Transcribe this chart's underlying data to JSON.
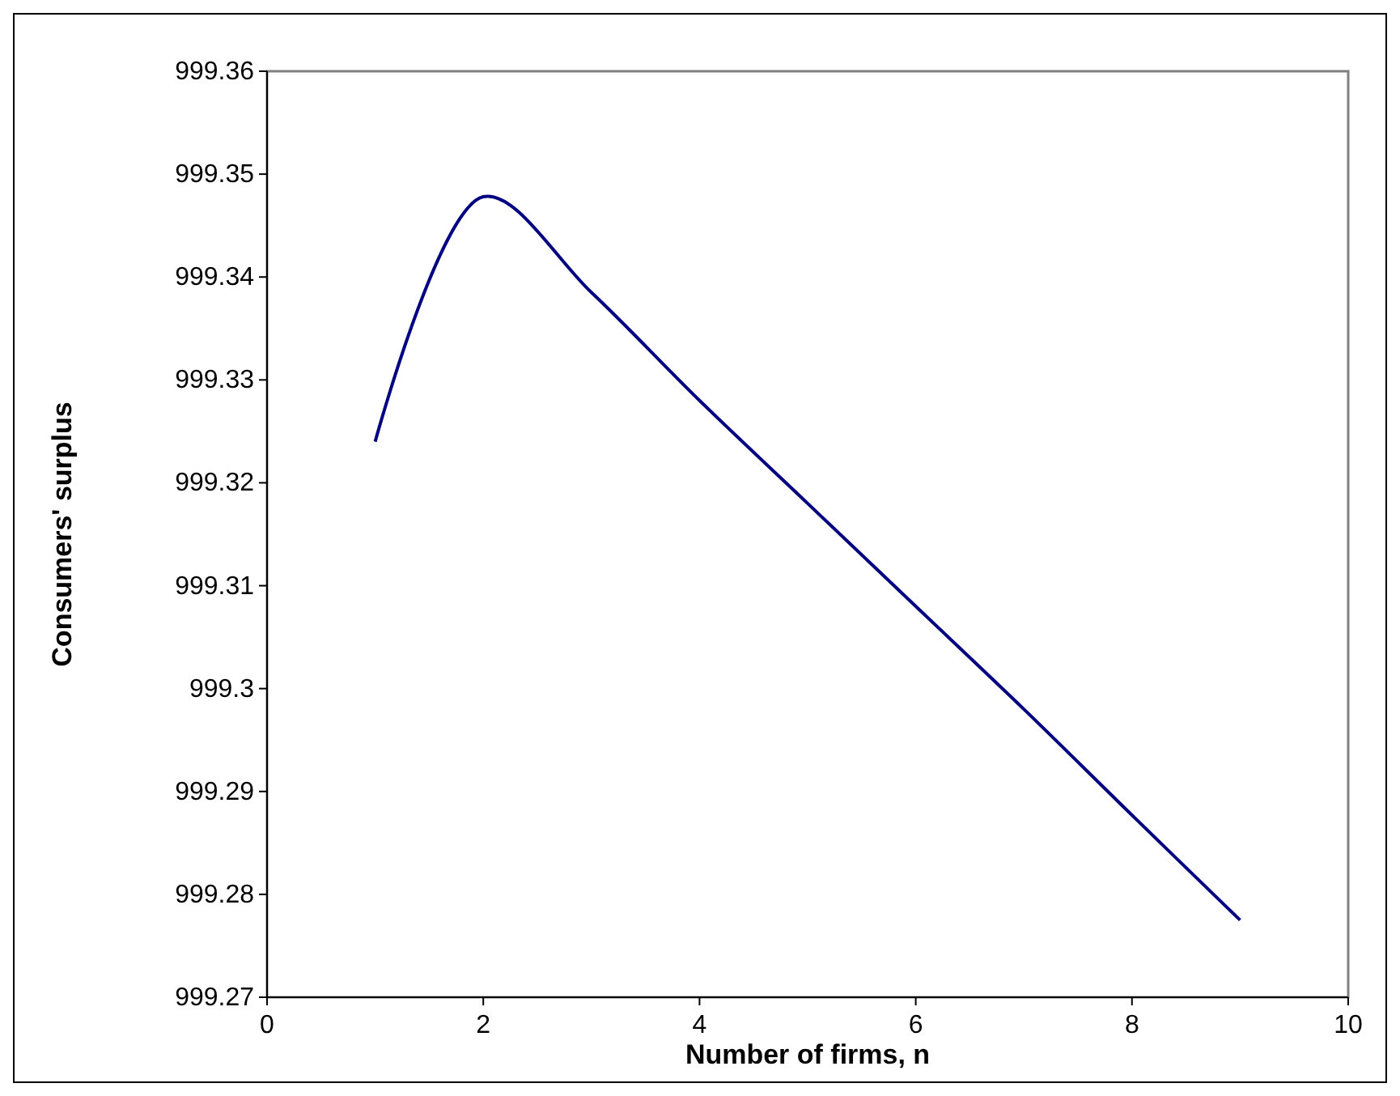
{
  "chart_data": {
    "type": "line",
    "xlabel": "Number of firms, n",
    "ylabel": "Consumers' surplus",
    "x": [
      1,
      2,
      3,
      4,
      5,
      6,
      7,
      8,
      9
    ],
    "series": [
      {
        "color": "#000080",
        "values": [
          999.324,
          999.3478,
          999.3385,
          999.328,
          999.318,
          999.308,
          999.298,
          999.2877,
          999.2775
        ]
      }
    ],
    "xlim": [
      0,
      10
    ],
    "xticks": [
      0,
      2,
      4,
      6,
      8,
      10
    ],
    "ylim": [
      999.27,
      999.36
    ],
    "yticks": [
      {
        "value": 999.27,
        "label": "999.27"
      },
      {
        "value": 999.28,
        "label": "999.28"
      },
      {
        "value": 999.29,
        "label": "999.29"
      },
      {
        "value": 999.3,
        "label": "999.3"
      },
      {
        "value": 999.31,
        "label": "999.31"
      },
      {
        "value": 999.32,
        "label": "999.32"
      },
      {
        "value": 999.33,
        "label": "999.33"
      },
      {
        "value": 999.34,
        "label": "999.34"
      },
      {
        "value": 999.35,
        "label": "999.35"
      },
      {
        "value": 999.36,
        "label": "999.36"
      }
    ],
    "marker": "none",
    "line_style": "solid"
  }
}
